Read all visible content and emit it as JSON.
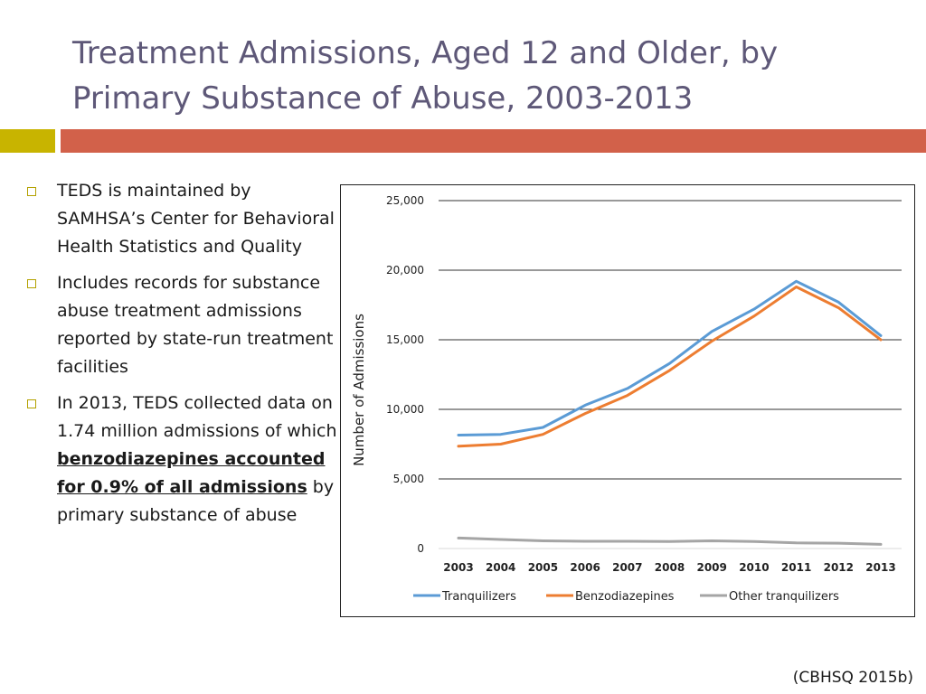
{
  "slide": {
    "title": "Treatment Admissions, Aged 12 and Older, by Primary Substance of Abuse, 2003-2013",
    "bullets": [
      {
        "text": "TEDS is maintained by SAMHSA’s Center for Behavioral Health Statistics and Quality"
      },
      {
        "text": "Includes records for substance abuse treatment admissions reported by state-run treatment facilities"
      },
      {
        "pre": "In 2013, TEDS collected data on 1.74 million admissions of which ",
        "bold": "benzodiazepines accounted for 0.9% of all admissions",
        "post": " by primary substance of abuse"
      }
    ],
    "citation": "(CBHSQ 2015b)"
  },
  "colors": {
    "title": "#5e5878",
    "accent_left": "#c8b400",
    "accent_right": "#d2614a"
  },
  "chart_data": {
    "type": "line",
    "title": "",
    "xlabel": "",
    "ylabel": "Number of Admissions",
    "categories": [
      "2003",
      "2004",
      "2005",
      "2006",
      "2007",
      "2008",
      "2009",
      "2010",
      "2011",
      "2012",
      "2013"
    ],
    "yticks": [
      0,
      5000,
      10000,
      15000,
      20000,
      25000
    ],
    "ytick_labels": [
      "0",
      "5,000",
      "10,000",
      "15,000",
      "20,000",
      "25,000"
    ],
    "ylim": [
      0,
      25000
    ],
    "grid": true,
    "legend_position": "bottom",
    "series": [
      {
        "name": "Tranquilizers",
        "color": "#5b9bd5",
        "values": [
          8150,
          8200,
          8700,
          10300,
          11500,
          13300,
          15600,
          17200,
          19200,
          17700,
          15300
        ]
      },
      {
        "name": "Benzodiazepines",
        "color": "#ed7d31",
        "values": [
          7350,
          7500,
          8200,
          9700,
          11000,
          12800,
          14900,
          16700,
          18800,
          17300,
          15000
        ]
      },
      {
        "name": "Other tranquilizers",
        "color": "#a5a5a5",
        "values": [
          750,
          650,
          550,
          520,
          520,
          500,
          550,
          500,
          400,
          380,
          300
        ]
      }
    ]
  }
}
